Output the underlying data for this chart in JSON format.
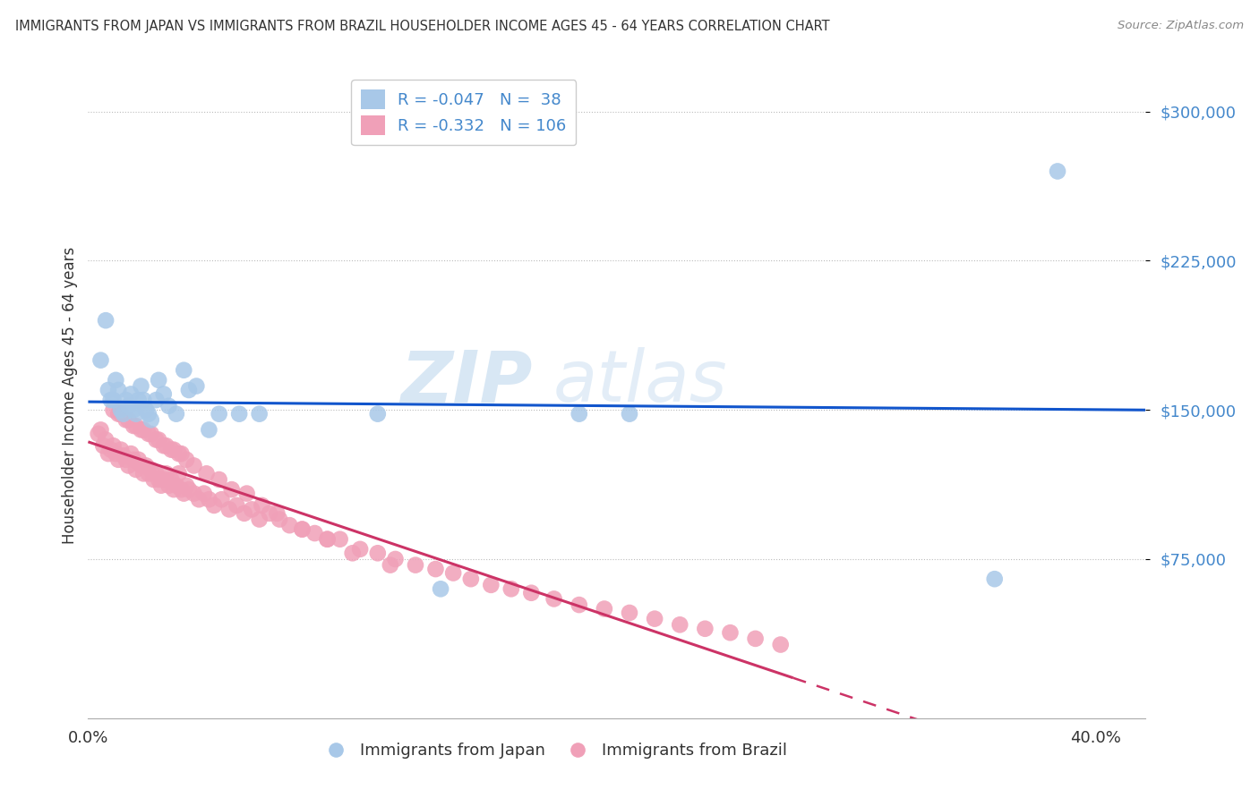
{
  "title": "IMMIGRANTS FROM JAPAN VS IMMIGRANTS FROM BRAZIL HOUSEHOLDER INCOME AGES 45 - 64 YEARS CORRELATION CHART",
  "source": "Source: ZipAtlas.com",
  "ylabel": "Householder Income Ages 45 - 64 years",
  "xlim": [
    0.0,
    0.42
  ],
  "ylim": [
    -5000,
    320000
  ],
  "legend_japan_R": "-0.047",
  "legend_japan_N": "38",
  "legend_brazil_R": "-0.332",
  "legend_brazil_N": "106",
  "color_japan": "#a8c8e8",
  "color_brazil": "#f0a0b8",
  "color_japan_line": "#1155cc",
  "color_brazil_line": "#cc3366",
  "watermark_zip": "ZIP",
  "watermark_atlas": "atlas",
  "background_color": "#ffffff",
  "japan_x": [
    0.005,
    0.007,
    0.008,
    0.009,
    0.01,
    0.011,
    0.012,
    0.013,
    0.014,
    0.015,
    0.016,
    0.017,
    0.018,
    0.019,
    0.02,
    0.021,
    0.022,
    0.023,
    0.024,
    0.025,
    0.027,
    0.028,
    0.03,
    0.032,
    0.035,
    0.038,
    0.04,
    0.043,
    0.048,
    0.052,
    0.06,
    0.068,
    0.115,
    0.195,
    0.215,
    0.36,
    0.385,
    0.14
  ],
  "japan_y": [
    175000,
    195000,
    160000,
    155000,
    155000,
    165000,
    160000,
    150000,
    148000,
    155000,
    152000,
    158000,
    150000,
    148000,
    155000,
    162000,
    155000,
    150000,
    148000,
    145000,
    155000,
    165000,
    158000,
    152000,
    148000,
    170000,
    160000,
    162000,
    140000,
    148000,
    148000,
    148000,
    148000,
    148000,
    148000,
    65000,
    270000,
    60000
  ],
  "brazil_x": [
    0.004,
    0.005,
    0.006,
    0.007,
    0.008,
    0.009,
    0.01,
    0.011,
    0.012,
    0.013,
    0.014,
    0.015,
    0.016,
    0.017,
    0.018,
    0.019,
    0.02,
    0.021,
    0.022,
    0.023,
    0.024,
    0.025,
    0.026,
    0.027,
    0.028,
    0.029,
    0.03,
    0.031,
    0.032,
    0.033,
    0.034,
    0.035,
    0.036,
    0.037,
    0.038,
    0.039,
    0.04,
    0.042,
    0.044,
    0.046,
    0.048,
    0.05,
    0.053,
    0.056,
    0.059,
    0.062,
    0.065,
    0.068,
    0.072,
    0.076,
    0.08,
    0.085,
    0.09,
    0.095,
    0.1,
    0.108,
    0.115,
    0.122,
    0.13,
    0.138,
    0.145,
    0.152,
    0.16,
    0.168,
    0.176,
    0.185,
    0.195,
    0.205,
    0.215,
    0.225,
    0.235,
    0.245,
    0.255,
    0.265,
    0.275,
    0.012,
    0.015,
    0.018,
    0.021,
    0.024,
    0.027,
    0.03,
    0.033,
    0.036,
    0.039,
    0.01,
    0.013,
    0.016,
    0.019,
    0.022,
    0.025,
    0.028,
    0.031,
    0.034,
    0.037,
    0.042,
    0.047,
    0.052,
    0.057,
    0.063,
    0.069,
    0.075,
    0.085,
    0.095,
    0.105,
    0.12
  ],
  "brazil_y": [
    138000,
    140000,
    132000,
    135000,
    128000,
    130000,
    132000,
    128000,
    125000,
    130000,
    127000,
    125000,
    122000,
    128000,
    125000,
    120000,
    125000,
    122000,
    118000,
    122000,
    118000,
    120000,
    115000,
    118000,
    115000,
    112000,
    115000,
    118000,
    112000,
    115000,
    110000,
    112000,
    118000,
    110000,
    108000,
    112000,
    110000,
    108000,
    105000,
    108000,
    105000,
    102000,
    105000,
    100000,
    102000,
    98000,
    100000,
    95000,
    98000,
    95000,
    92000,
    90000,
    88000,
    85000,
    85000,
    80000,
    78000,
    75000,
    72000,
    70000,
    68000,
    65000,
    62000,
    60000,
    58000,
    55000,
    52000,
    50000,
    48000,
    45000,
    42000,
    40000,
    38000,
    35000,
    32000,
    148000,
    145000,
    142000,
    140000,
    138000,
    135000,
    132000,
    130000,
    128000,
    125000,
    150000,
    148000,
    145000,
    142000,
    140000,
    138000,
    135000,
    132000,
    130000,
    128000,
    122000,
    118000,
    115000,
    110000,
    108000,
    102000,
    98000,
    90000,
    85000,
    78000,
    72000
  ]
}
